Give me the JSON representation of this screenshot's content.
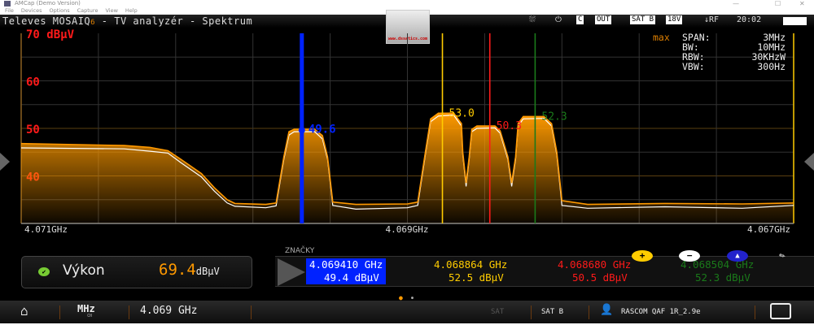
{
  "window": {
    "title": "AMCap (Demo Version)",
    "menu": [
      "File",
      "Devices",
      "Options",
      "Capture",
      "View",
      "Help"
    ]
  },
  "header": {
    "title": "Televes MOSAIQ",
    "title_suffix": "6",
    "title_rest": " - TV analyzér - Spektrum",
    "status": {
      "icon1": "satellite-dish-icon",
      "icon2": "power-plug-icon",
      "c": "C",
      "out": "OUT",
      "sat": "SAT B",
      "voltage": "18V",
      "input": "↓RF",
      "time": "20:02",
      "battery": "battery-icon"
    },
    "logo_text": "www.dssatics.com"
  },
  "settings": {
    "mode": "max",
    "rows": [
      {
        "k": "SPAN:",
        "v": "3MHz"
      },
      {
        "k": "BW:",
        "v": "10MHz"
      },
      {
        "k": "RBW:",
        "v": "30KHzW"
      },
      {
        "k": "VBW:",
        "v": "300Hz"
      }
    ]
  },
  "chart_data": {
    "type": "line",
    "yunit": "dBµV",
    "ylim": [
      30,
      70
    ],
    "yticks": [
      {
        "v": 70,
        "label": "70 dBµV"
      },
      {
        "v": 60,
        "label": "60"
      },
      {
        "v": 50,
        "label": "50"
      },
      {
        "v": 40,
        "label": "40"
      }
    ],
    "xlim": [
      4.0705,
      4.0675
    ],
    "xtick_labels": [
      "4.071GHz",
      "4.069GHz",
      "4.067GHz"
    ],
    "grid": true,
    "series": [
      {
        "name": "max",
        "color": "#ff9900",
        "fill": true,
        "points": [
          [
            4.0705,
            46.8
          ],
          [
            4.0703,
            46.6
          ],
          [
            4.0701,
            46.4
          ],
          [
            4.07,
            46.0
          ],
          [
            4.06993,
            45.3
          ],
          [
            4.06988,
            43.5
          ],
          [
            4.0698,
            40.5
          ],
          [
            4.06975,
            37.5
          ],
          [
            4.0697,
            35.0
          ],
          [
            4.06967,
            34.2
          ],
          [
            4.06955,
            34.0
          ],
          [
            4.06951,
            34.3
          ],
          [
            4.06948,
            44
          ],
          [
            4.06946,
            49.3
          ],
          [
            4.06944,
            49.8
          ],
          [
            4.06936,
            49.8
          ],
          [
            4.06933,
            48.5
          ],
          [
            4.06931,
            44
          ],
          [
            4.06929,
            34.5
          ],
          [
            4.0692,
            34.0
          ],
          [
            4.069,
            34.1
          ],
          [
            4.06896,
            34.5
          ],
          [
            4.06893,
            45
          ],
          [
            4.06891,
            52
          ],
          [
            4.06888,
            53.2
          ],
          [
            4.06882,
            53.2
          ],
          [
            4.06879,
            51
          ],
          [
            4.068785,
            45
          ],
          [
            4.068772,
            38.5
          ],
          [
            4.06876,
            44
          ],
          [
            4.06875,
            49.8
          ],
          [
            4.06873,
            50.5
          ],
          [
            4.06866,
            50.5
          ],
          [
            4.06864,
            49.5
          ],
          [
            4.06861,
            44
          ],
          [
            4.068595,
            38.5
          ],
          [
            4.06858,
            44
          ],
          [
            4.06857,
            51
          ],
          [
            4.06855,
            52.5
          ],
          [
            4.06847,
            52.5
          ],
          [
            4.06844,
            51
          ],
          [
            4.06842,
            45
          ],
          [
            4.0684,
            34.8
          ],
          [
            4.0683,
            34.0
          ],
          [
            4.068,
            34.2
          ],
          [
            4.0677,
            34.1
          ],
          [
            4.0675,
            34.3
          ]
        ]
      },
      {
        "name": "live",
        "color": "#ffffff",
        "fill": false,
        "points": [
          [
            4.0705,
            45.9
          ],
          [
            4.0703,
            45.8
          ],
          [
            4.0701,
            45.7
          ],
          [
            4.07,
            45.2
          ],
          [
            4.06993,
            44.8
          ],
          [
            4.06988,
            42.8
          ],
          [
            4.0698,
            39.8
          ],
          [
            4.06975,
            36.8
          ],
          [
            4.0697,
            34.3
          ],
          [
            4.06967,
            33.6
          ],
          [
            4.06955,
            33.3
          ],
          [
            4.06951,
            33.7
          ],
          [
            4.06948,
            43.5
          ],
          [
            4.06946,
            48.6
          ],
          [
            4.06944,
            49.3
          ],
          [
            4.06936,
            49.3
          ],
          [
            4.06933,
            47.8
          ],
          [
            4.06931,
            43.5
          ],
          [
            4.06929,
            33.8
          ],
          [
            4.0692,
            33.0
          ],
          [
            4.069,
            33.3
          ],
          [
            4.06896,
            33.8
          ],
          [
            4.06893,
            44.5
          ],
          [
            4.06891,
            51.4
          ],
          [
            4.06888,
            52.6
          ],
          [
            4.06882,
            52.8
          ],
          [
            4.06879,
            50.5
          ],
          [
            4.068785,
            44.5
          ],
          [
            4.068772,
            37.8
          ],
          [
            4.06876,
            43.5
          ],
          [
            4.06875,
            49.3
          ],
          [
            4.06873,
            50.0
          ],
          [
            4.06866,
            50.1
          ],
          [
            4.06864,
            49.0
          ],
          [
            4.06861,
            43.5
          ],
          [
            4.068595,
            37.8
          ],
          [
            4.06858,
            43.5
          ],
          [
            4.06857,
            50.5
          ],
          [
            4.06855,
            52.0
          ],
          [
            4.06847,
            52.1
          ],
          [
            4.06844,
            50.5
          ],
          [
            4.06842,
            44.5
          ],
          [
            4.0684,
            33.8
          ],
          [
            4.0683,
            33.2
          ],
          [
            4.068,
            33.5
          ],
          [
            4.0677,
            33.2
          ],
          [
            4.0675,
            33.8
          ]
        ]
      }
    ],
    "markers": [
      {
        "freq": 4.06941,
        "freq_label": "4.069410 GHz",
        "level": 49.4,
        "level_label": "49.4 dBµV",
        "plot_label": "49.6",
        "peak": 49.6,
        "color": "#0022ff",
        "selected": true
      },
      {
        "freq": 4.068864,
        "freq_label": "4.068864 GHz",
        "level": 52.5,
        "level_label": "52.5 dBµV",
        "plot_label": "53.0",
        "peak": 53.0,
        "color": "#ffcc00"
      },
      {
        "freq": 4.06868,
        "freq_label": "4.068680 GHz",
        "level": 50.5,
        "level_label": "50.5 dBµV",
        "plot_label": "50.3",
        "peak": 50.3,
        "color": "#ff1a1a"
      },
      {
        "freq": 4.068504,
        "freq_label": "4.068504 GHz",
        "level": 52.3,
        "level_label": "52.3 dBµV",
        "plot_label": "52.3",
        "peak": 52.3,
        "color": "#1a7a1a"
      }
    ]
  },
  "power": {
    "label": "Výkon",
    "value": "69.4",
    "unit": "dBµV"
  },
  "markers_panel": {
    "title": "ZNAČKY",
    "buttons": [
      "add-marker",
      "remove-marker",
      "delta-marker",
      "edit-marker"
    ]
  },
  "bottom": {
    "unit": "MHz",
    "unit_sub": "CH",
    "frequency": "4.069 GHz",
    "sat_icon": "SAT",
    "band": "SAT B",
    "profile": "RASCOM QAF 1R_2.9e"
  }
}
